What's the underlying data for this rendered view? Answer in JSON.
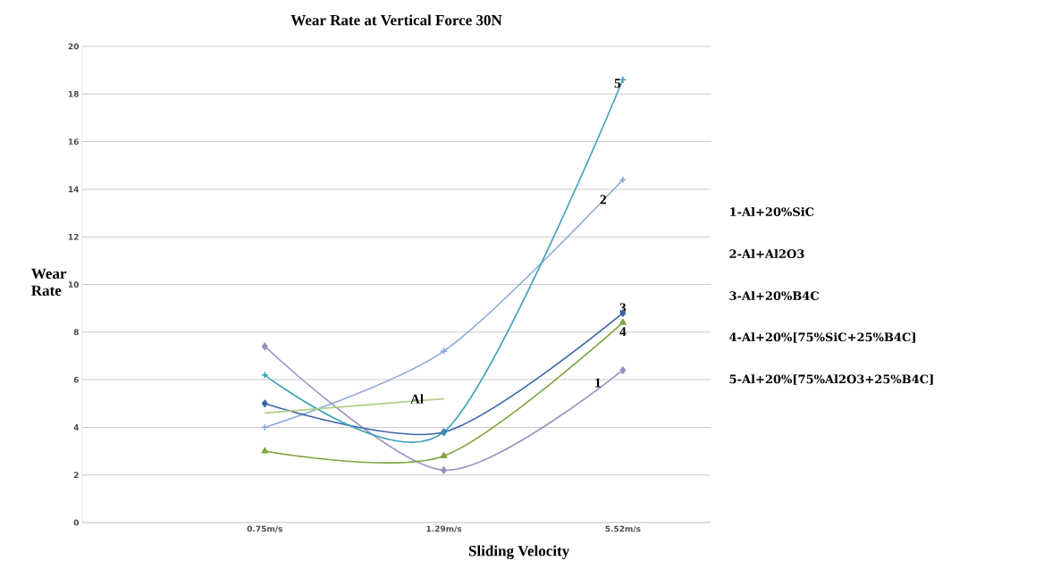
{
  "chart_data": {
    "type": "line",
    "title": "Wear Rate at Vertical Force 30N",
    "xlabel": "Sliding Velocity",
    "ylabel": "Wear Rate",
    "categories": [
      "0.75m/s",
      "1.29m/s",
      "5.52m/s"
    ],
    "series": [
      {
        "name": "1",
        "color": "#9b8fc0",
        "marker": "diamond",
        "values": [
          7.4,
          2.2,
          6.4
        ]
      },
      {
        "name": "2",
        "color": "#8fa8d8",
        "marker": "cross",
        "values": [
          4.0,
          7.2,
          14.4
        ]
      },
      {
        "name": "3",
        "color": "#3a66a8",
        "marker": "diamond",
        "values": [
          5.0,
          3.8,
          8.8
        ]
      },
      {
        "name": "4",
        "color": "#7fa640",
        "marker": "triangle",
        "values": [
          3.0,
          2.8,
          8.4
        ]
      },
      {
        "name": "5",
        "color": "#3aa0bc",
        "marker": "cross",
        "values": [
          6.2,
          3.8,
          18.6
        ]
      },
      {
        "name": "Al",
        "color": "#b0cf8a",
        "marker": "none",
        "values": [
          4.6,
          5.2,
          null
        ]
      }
    ],
    "ylim": [
      0,
      20
    ],
    "yticks": [
      0,
      2,
      4,
      6,
      8,
      10,
      12,
      14,
      16,
      18,
      20
    ],
    "grid": "y",
    "annotations": [
      "1-Al+20%SiC",
      "2-Al+Al2O3",
      "3-Al+20%B4C",
      "4-Al+20%[75%SiC+25%B4C]",
      "5-Al+20%[75%Al2O3+25%B4C]"
    ]
  }
}
